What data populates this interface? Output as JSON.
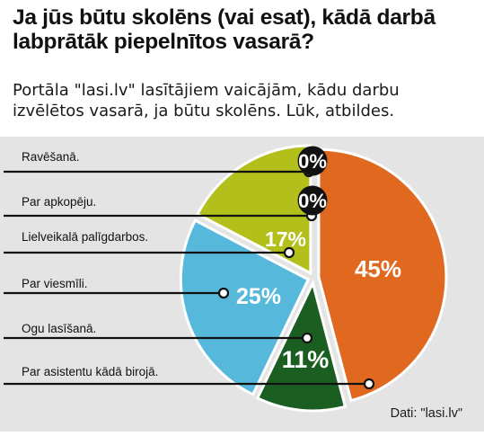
{
  "header": {
    "title": "Ja jūs būtu skolēns (vai esat), kādā darbā labprātāk piepelnītos vasarā?",
    "subtitle": "Portāla \"lasi.lv\" lasītājiem vaicājām, kādu darbu izvēlētos vasarā, ja būtu skolēns. Lūk, atbildes."
  },
  "source": "Dati: \"lasi.lv\"",
  "colors": {
    "panel_bg": "#e4e4e4",
    "orange": "#e0691f",
    "lime": "#b3bf1a",
    "blue": "#56b8da",
    "dark_green": "#1b5e21",
    "badge": "#111111",
    "leader": "#111111"
  },
  "chart_data": {
    "type": "pie",
    "title": "Ja jūs būtu skolēns (vai esat), kādā darbā labprātāk piepelnītos vasarā?",
    "unit": "%",
    "slices": [
      {
        "label": "Ravēšanā.",
        "value": 0,
        "display": "0%",
        "color": "#111111"
      },
      {
        "label": "Par apkopēju.",
        "value": 0,
        "display": "0%",
        "color": "#111111"
      },
      {
        "label": "Lielveikalā palīgdarbos.",
        "value": 17,
        "display": "17%",
        "color": "#b3bf1a"
      },
      {
        "label": "Par viesmīli.",
        "value": 25,
        "display": "25%",
        "color": "#56b8da"
      },
      {
        "label": "Ogu lasīšanā.",
        "value": 11,
        "display": "11%",
        "color": "#1b5e21"
      },
      {
        "label": "Par asistentu kādā birojā.",
        "value": 45,
        "display": "45%",
        "color": "#e0691f"
      }
    ]
  }
}
